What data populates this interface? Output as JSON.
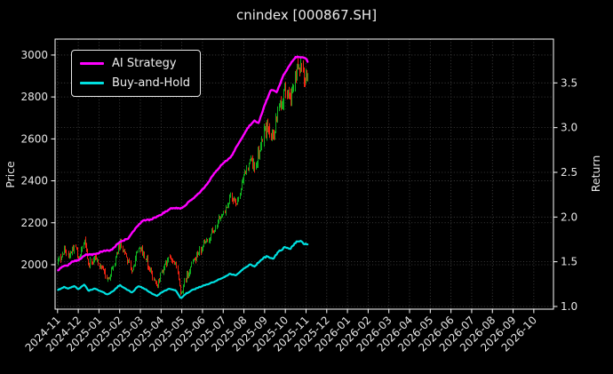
{
  "chart_data": {
    "type": "candlestick+line",
    "title": "cnindex [000867.SH]",
    "background": "#000000",
    "frame_color": "#ffffff",
    "text_color": "#e6e6e6",
    "grid": {
      "color": "#4a4a4a",
      "style": "dotted"
    },
    "x_axis": {
      "range_months": [
        -0.12,
        23.95
      ],
      "tick_positions": [
        0,
        1,
        2,
        3,
        4,
        5,
        6,
        7,
        8,
        9,
        10,
        11,
        12,
        13,
        14,
        15,
        16,
        17,
        18,
        19,
        20,
        21,
        22,
        23
      ],
      "tick_labels": [
        "2024-11",
        "2024-12",
        "2025-01",
        "2025-02",
        "2025-03",
        "2025-04",
        "2025-05",
        "2025-06",
        "2025-07",
        "2025-08",
        "2025-09",
        "2025-10",
        "2025-11",
        "2025-12",
        "2026-01",
        "2026-02",
        "2026-03",
        "2026-04",
        "2026-05",
        "2026-06",
        "2026-07",
        "2026-08",
        "2026-09",
        "2026-10"
      ]
    },
    "price_axis": {
      "label": "Price",
      "range": [
        1788,
        3076
      ],
      "ticks": [
        2000,
        2200,
        2400,
        2600,
        2800,
        3000
      ],
      "tick_labels": [
        "2000",
        "2200",
        "2400",
        "2600",
        "2800",
        "3000"
      ]
    },
    "return_axis": {
      "label": "Return",
      "range": [
        0.97,
        3.99
      ],
      "ticks": [
        1.0,
        1.5,
        2.0,
        2.5,
        3.0,
        3.5
      ],
      "tick_labels": [
        "1.0",
        "1.5",
        "2.0",
        "2.5",
        "3.0",
        "3.5"
      ]
    },
    "legend": [
      {
        "label": "AI Strategy",
        "color": "#ff00ff"
      },
      {
        "label": "Buy-and-Hold",
        "color": "#00e0e0"
      }
    ],
    "candles": {
      "count": 250,
      "t_start": 0,
      "t_end": 12.1,
      "up_color": "#0fae1f",
      "down_color": "#ee2211",
      "close_keypoints": [
        [
          0,
          2010
        ],
        [
          0.3,
          2070
        ],
        [
          0.5,
          2040
        ],
        [
          0.8,
          2090
        ],
        [
          1.0,
          2030
        ],
        [
          1.3,
          2120
        ],
        [
          1.5,
          2000
        ],
        [
          1.8,
          2045
        ],
        [
          2.1,
          1990
        ],
        [
          2.4,
          1930
        ],
        [
          2.7,
          1995
        ],
        [
          3.0,
          2110
        ],
        [
          3.3,
          2030
        ],
        [
          3.6,
          1965
        ],
        [
          3.9,
          2090
        ],
        [
          4.2,
          2040
        ],
        [
          4.5,
          1960
        ],
        [
          4.8,
          1905
        ],
        [
          5.1,
          1985
        ],
        [
          5.4,
          2040
        ],
        [
          5.7,
          2010
        ],
        [
          5.95,
          1852
        ],
        [
          6.2,
          1945
        ],
        [
          6.5,
          2010
        ],
        [
          6.8,
          2060
        ],
        [
          7.0,
          2090
        ],
        [
          7.5,
          2160
        ],
        [
          8.0,
          2250
        ],
        [
          8.3,
          2320
        ],
        [
          8.6,
          2295
        ],
        [
          9.0,
          2420
        ],
        [
          9.3,
          2500
        ],
        [
          9.5,
          2455
        ],
        [
          9.8,
          2580
        ],
        [
          10.1,
          2655
        ],
        [
          10.4,
          2605
        ],
        [
          10.7,
          2750
        ],
        [
          11.0,
          2830
        ],
        [
          11.2,
          2785
        ],
        [
          11.5,
          2920
        ],
        [
          11.7,
          2950
        ],
        [
          11.9,
          2895
        ],
        [
          12.1,
          2865
        ]
      ]
    },
    "series": [
      {
        "name": "AI Strategy",
        "axis": "return",
        "color": "#ff00ff",
        "keypoints": [
          [
            0,
            1.4
          ],
          [
            0.2,
            1.44
          ],
          [
            0.5,
            1.46
          ],
          [
            0.7,
            1.5
          ],
          [
            1.0,
            1.52
          ],
          [
            1.4,
            1.58
          ],
          [
            1.8,
            1.58
          ],
          [
            2.2,
            1.62
          ],
          [
            2.6,
            1.63
          ],
          [
            3.0,
            1.72
          ],
          [
            3.4,
            1.76
          ],
          [
            3.8,
            1.88
          ],
          [
            4.1,
            1.96
          ],
          [
            4.5,
            1.97
          ],
          [
            5.0,
            2.03
          ],
          [
            5.5,
            2.1
          ],
          [
            6.0,
            2.1
          ],
          [
            6.4,
            2.18
          ],
          [
            6.8,
            2.26
          ],
          [
            7.2,
            2.36
          ],
          [
            7.6,
            2.5
          ],
          [
            8.0,
            2.6
          ],
          [
            8.4,
            2.68
          ],
          [
            8.8,
            2.85
          ],
          [
            9.2,
            3.0
          ],
          [
            9.5,
            3.08
          ],
          [
            9.7,
            3.05
          ],
          [
            10.0,
            3.25
          ],
          [
            10.3,
            3.42
          ],
          [
            10.6,
            3.4
          ],
          [
            10.9,
            3.58
          ],
          [
            11.2,
            3.7
          ],
          [
            11.5,
            3.79
          ],
          [
            11.8,
            3.79
          ],
          [
            12.0,
            3.77
          ],
          [
            12.1,
            3.73
          ]
        ]
      },
      {
        "name": "Buy-and-Hold",
        "axis": "return",
        "color": "#00e0e0",
        "derived_from": "close",
        "scale": 0.000588,
        "start_value": 1.18,
        "end_value": 1.68
      }
    ]
  }
}
